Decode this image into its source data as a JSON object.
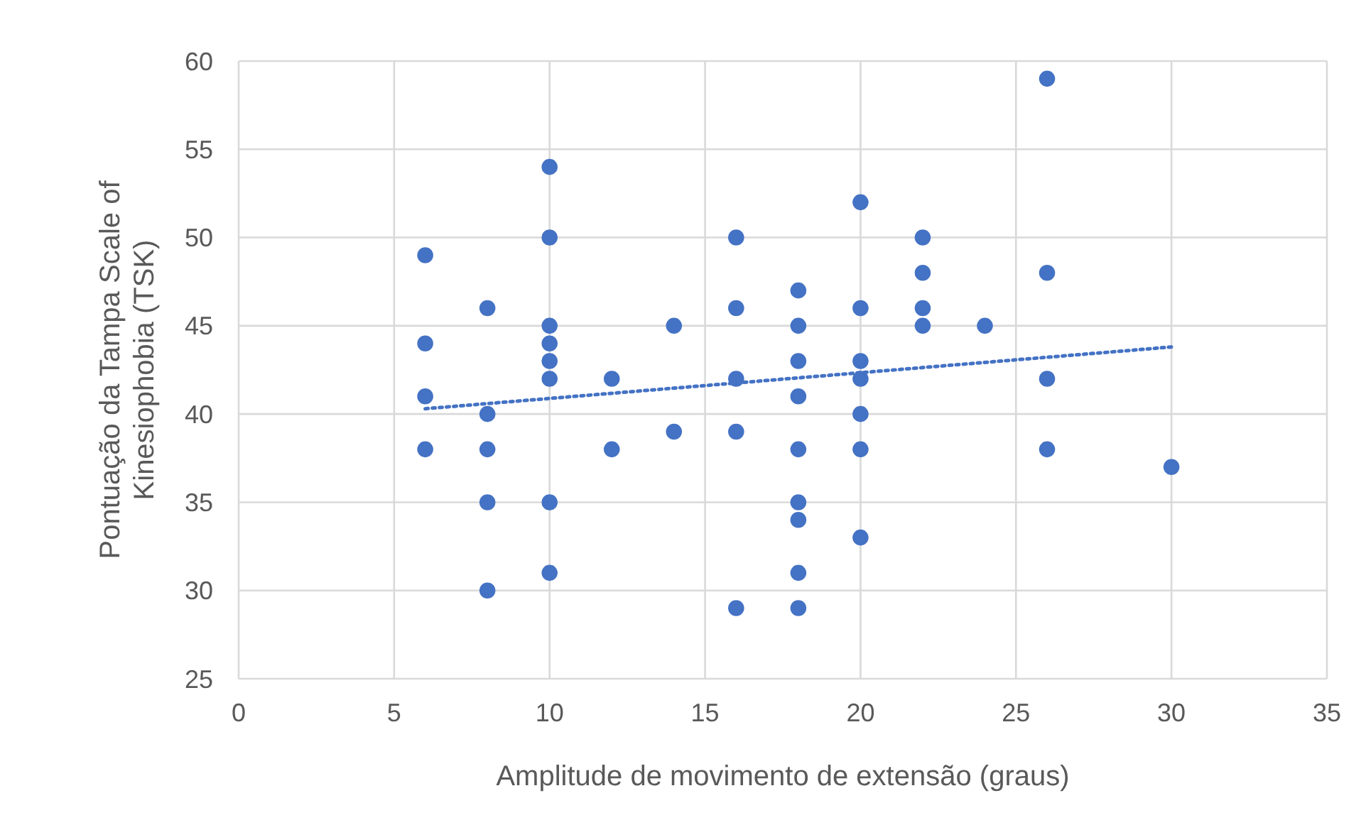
{
  "chart_data": {
    "type": "scatter",
    "xlabel": "Amplitude de movimento de extensão (graus)",
    "ylabel": "Pontuação da Tampa Scale of Kinesiophobia (TSK)",
    "xlim": [
      0,
      35
    ],
    "xticks": [
      0,
      5,
      10,
      15,
      20,
      25,
      30,
      35
    ],
    "ylim": [
      25,
      60
    ],
    "yticks": [
      25,
      30,
      35,
      40,
      45,
      50,
      55,
      60
    ],
    "grid": true,
    "series": [
      {
        "color": "#4472c4",
        "marker": "circle",
        "x": [
          6,
          6,
          6,
          6,
          8,
          8,
          8,
          8,
          8,
          10,
          10,
          10,
          10,
          10,
          10,
          10,
          10,
          12,
          12,
          14,
          14,
          16,
          16,
          16,
          16,
          16,
          18,
          18,
          18,
          18,
          18,
          18,
          18,
          18,
          18,
          20,
          20,
          20,
          20,
          20,
          20,
          20,
          22,
          22,
          22,
          22,
          24,
          26,
          26,
          26,
          26,
          30
        ],
        "values": [
          49,
          44,
          41,
          38,
          46,
          40,
          38,
          35,
          30,
          54,
          50,
          45,
          44,
          43,
          42,
          35,
          31,
          42,
          38,
          45,
          39,
          50,
          46,
          42,
          39,
          29,
          47,
          45,
          43,
          41,
          38,
          35,
          34,
          31,
          29,
          52,
          46,
          43,
          42,
          40,
          38,
          33,
          50,
          48,
          46,
          45,
          45,
          59,
          48,
          42,
          38,
          37
        ]
      },
      {
        "type": "line",
        "color": "#4472c4",
        "line_style": "dotted",
        "marker": "none",
        "x": [
          6,
          30
        ],
        "values": [
          40.3,
          43.8
        ]
      }
    ]
  }
}
